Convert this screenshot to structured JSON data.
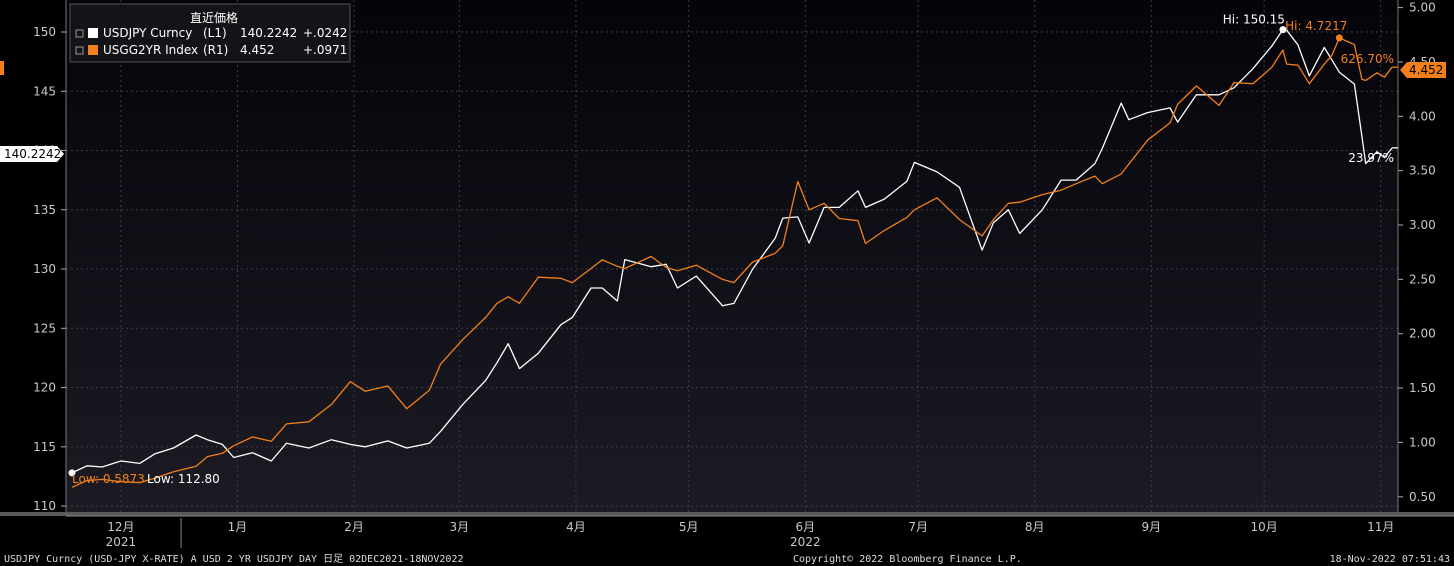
{
  "colors": {
    "usdjpy": "#ffffff",
    "usgg2yr": "#f27f1b",
    "background": "#0d0c14",
    "grid": "#3c3c46",
    "axis_text": "#c8c8c8"
  },
  "legend": {
    "title": "直近価格",
    "items": [
      {
        "name": "USDJPY Curncy",
        "axis": "(L1)",
        "last": "140.2242",
        "change": "+.0242"
      },
      {
        "name": "USGG2YR Index",
        "axis": "(R1)",
        "last": "4.452",
        "change": "+.0971"
      }
    ]
  },
  "annotations": {
    "left_last_value": "140.2242",
    "right_last_value": "4.452",
    "usdjpy_change_pct": "23.97%",
    "usgg2yr_change_pct": "626.70%",
    "usdjpy_high": "Hi: 150.15",
    "usgg2yr_high": "Hi: 4.7217",
    "usdjpy_low": "Low: 112.80",
    "usgg2yr_low": "Low: 0.5873"
  },
  "footer": {
    "left": "USDJPY Curncy (USD-JPY X-RATE) A USD 2 YR  USDJPY DAY  日足 02DEC2021-18NOV2022",
    "center": "Copyright© 2022 Bloomberg Finance L.P.",
    "right": "18-Nov-2022 07:51:43"
  },
  "chart_data": {
    "type": "line",
    "x_range": [
      "2021-12-02",
      "2022-11-18"
    ],
    "y_left": {
      "ticks": [
        110,
        115,
        120,
        125,
        130,
        135,
        140,
        145,
        150
      ],
      "range": [
        109.5,
        152.7
      ]
    },
    "y_right": {
      "ticks": [
        "0.50",
        "1.00",
        "1.50",
        "2.00",
        "2.50",
        "3.00",
        "3.50",
        "4.00",
        "4.50",
        "5.00"
      ],
      "range": [
        0.36,
        5.07
      ]
    },
    "x_ticks": [
      {
        "label": "12月",
        "date": "2021-12-15"
      },
      {
        "label": "1月",
        "date": "2022-01-15"
      },
      {
        "label": "2月",
        "date": "2022-02-15"
      },
      {
        "label": "3月",
        "date": "2022-03-15"
      },
      {
        "label": "4月",
        "date": "2022-04-15"
      },
      {
        "label": "5月",
        "date": "2022-05-15"
      },
      {
        "label": "6月",
        "date": "2022-06-15"
      },
      {
        "label": "7月",
        "date": "2022-07-15"
      },
      {
        "label": "8月",
        "date": "2022-08-15"
      },
      {
        "label": "9月",
        "date": "2022-09-15"
      },
      {
        "label": "10月",
        "date": "2022-10-15"
      },
      {
        "label": "11月",
        "date": "2022-11-15"
      }
    ],
    "year_labels": [
      {
        "label": "2021",
        "date": "2021-12-15"
      },
      {
        "label": "2022",
        "date": "2022-06-15"
      }
    ],
    "series": [
      {
        "name": "USDJPY Curncy",
        "axis": "left",
        "points": [
          [
            "2021-12-02",
            112.8
          ],
          [
            "2021-12-06",
            113.4
          ],
          [
            "2021-12-10",
            113.3
          ],
          [
            "2021-12-15",
            113.8
          ],
          [
            "2021-12-20",
            113.6
          ],
          [
            "2021-12-24",
            114.4
          ],
          [
            "2021-12-29",
            114.9
          ],
          [
            "2022-01-04",
            116.0
          ],
          [
            "2022-01-07",
            115.6
          ],
          [
            "2022-01-11",
            115.2
          ],
          [
            "2022-01-14",
            114.1
          ],
          [
            "2022-01-19",
            114.5
          ],
          [
            "2022-01-24",
            113.8
          ],
          [
            "2022-01-28",
            115.3
          ],
          [
            "2022-02-03",
            114.9
          ],
          [
            "2022-02-09",
            115.6
          ],
          [
            "2022-02-14",
            115.2
          ],
          [
            "2022-02-18",
            115.0
          ],
          [
            "2022-02-24",
            115.5
          ],
          [
            "2022-03-01",
            114.9
          ],
          [
            "2022-03-07",
            115.3
          ],
          [
            "2022-03-10",
            116.3
          ],
          [
            "2022-03-16",
            118.6
          ],
          [
            "2022-03-22",
            120.6
          ],
          [
            "2022-03-25",
            122.1
          ],
          [
            "2022-03-28",
            123.7
          ],
          [
            "2022-03-31",
            121.6
          ],
          [
            "2022-04-05",
            122.9
          ],
          [
            "2022-04-11",
            125.3
          ],
          [
            "2022-04-14",
            125.9
          ],
          [
            "2022-04-19",
            128.4
          ],
          [
            "2022-04-22",
            128.4
          ],
          [
            "2022-04-26",
            127.3
          ],
          [
            "2022-04-28",
            130.8
          ],
          [
            "2022-05-05",
            130.2
          ],
          [
            "2022-05-09",
            130.4
          ],
          [
            "2022-05-12",
            128.4
          ],
          [
            "2022-05-17",
            129.4
          ],
          [
            "2022-05-24",
            126.9
          ],
          [
            "2022-05-27",
            127.1
          ],
          [
            "2022-06-01",
            130.0
          ],
          [
            "2022-06-07",
            132.6
          ],
          [
            "2022-06-09",
            134.3
          ],
          [
            "2022-06-13",
            134.4
          ],
          [
            "2022-06-16",
            132.2
          ],
          [
            "2022-06-20",
            135.2
          ],
          [
            "2022-06-24",
            135.2
          ],
          [
            "2022-06-29",
            136.6
          ],
          [
            "2022-07-01",
            135.2
          ],
          [
            "2022-07-06",
            135.9
          ],
          [
            "2022-07-12",
            137.4
          ],
          [
            "2022-07-14",
            139.0
          ],
          [
            "2022-07-20",
            138.2
          ],
          [
            "2022-07-26",
            136.9
          ],
          [
            "2022-08-01",
            131.6
          ],
          [
            "2022-08-04",
            133.9
          ],
          [
            "2022-08-08",
            135.0
          ],
          [
            "2022-08-11",
            133.0
          ],
          [
            "2022-08-17",
            135.0
          ],
          [
            "2022-08-22",
            137.5
          ],
          [
            "2022-08-26",
            137.5
          ],
          [
            "2022-08-31",
            138.9
          ],
          [
            "2022-09-02",
            140.2
          ],
          [
            "2022-09-07",
            144.0
          ],
          [
            "2022-09-09",
            142.6
          ],
          [
            "2022-09-14",
            143.2
          ],
          [
            "2022-09-20",
            143.6
          ],
          [
            "2022-09-22",
            142.4
          ],
          [
            "2022-09-27",
            144.7
          ],
          [
            "2022-10-03",
            144.7
          ],
          [
            "2022-10-07",
            145.3
          ],
          [
            "2022-10-12",
            146.9
          ],
          [
            "2022-10-17",
            148.8
          ],
          [
            "2022-10-20",
            150.2
          ],
          [
            "2022-10-21",
            150.15
          ],
          [
            "2022-10-24",
            148.9
          ],
          [
            "2022-10-27",
            146.3
          ],
          [
            "2022-10-31",
            148.7
          ],
          [
            "2022-11-04",
            146.6
          ],
          [
            "2022-11-08",
            145.6
          ],
          [
            "2022-11-10",
            141.2
          ],
          [
            "2022-11-11",
            138.9
          ],
          [
            "2022-11-14",
            139.9
          ],
          [
            "2022-11-16",
            139.4
          ],
          [
            "2022-11-18",
            140.2242
          ]
        ]
      },
      {
        "name": "USGG2YR Index",
        "axis": "right",
        "points": [
          [
            "2021-12-02",
            0.5873
          ],
          [
            "2021-12-06",
            0.65
          ],
          [
            "2021-12-10",
            0.66
          ],
          [
            "2021-12-15",
            0.64
          ],
          [
            "2021-12-20",
            0.63
          ],
          [
            "2021-12-24",
            0.67
          ],
          [
            "2021-12-29",
            0.73
          ],
          [
            "2022-01-04",
            0.78
          ],
          [
            "2022-01-07",
            0.87
          ],
          [
            "2022-01-11",
            0.9
          ],
          [
            "2022-01-14",
            0.97
          ],
          [
            "2022-01-19",
            1.05
          ],
          [
            "2022-01-24",
            1.01
          ],
          [
            "2022-01-28",
            1.17
          ],
          [
            "2022-02-03",
            1.19
          ],
          [
            "2022-02-09",
            1.35
          ],
          [
            "2022-02-14",
            1.56
          ],
          [
            "2022-02-18",
            1.47
          ],
          [
            "2022-02-24",
            1.52
          ],
          [
            "2022-03-01",
            1.31
          ],
          [
            "2022-03-07",
            1.48
          ],
          [
            "2022-03-10",
            1.72
          ],
          [
            "2022-03-16",
            1.95
          ],
          [
            "2022-03-22",
            2.15
          ],
          [
            "2022-03-25",
            2.28
          ],
          [
            "2022-03-28",
            2.34
          ],
          [
            "2022-03-31",
            2.28
          ],
          [
            "2022-04-05",
            2.52
          ],
          [
            "2022-04-11",
            2.51
          ],
          [
            "2022-04-14",
            2.47
          ],
          [
            "2022-04-19",
            2.6
          ],
          [
            "2022-04-22",
            2.68
          ],
          [
            "2022-04-26",
            2.62
          ],
          [
            "2022-04-28",
            2.6
          ],
          [
            "2022-05-05",
            2.71
          ],
          [
            "2022-05-09",
            2.61
          ],
          [
            "2022-05-12",
            2.58
          ],
          [
            "2022-05-17",
            2.63
          ],
          [
            "2022-05-24",
            2.5
          ],
          [
            "2022-05-27",
            2.47
          ],
          [
            "2022-06-01",
            2.66
          ],
          [
            "2022-06-07",
            2.74
          ],
          [
            "2022-06-09",
            2.81
          ],
          [
            "2022-06-13",
            3.4
          ],
          [
            "2022-06-16",
            3.14
          ],
          [
            "2022-06-20",
            3.2
          ],
          [
            "2022-06-24",
            3.06
          ],
          [
            "2022-06-29",
            3.04
          ],
          [
            "2022-07-01",
            2.83
          ],
          [
            "2022-07-06",
            2.95
          ],
          [
            "2022-07-12",
            3.07
          ],
          [
            "2022-07-14",
            3.14
          ],
          [
            "2022-07-20",
            3.25
          ],
          [
            "2022-07-26",
            3.05
          ],
          [
            "2022-08-01",
            2.9
          ],
          [
            "2022-08-04",
            3.05
          ],
          [
            "2022-08-08",
            3.2
          ],
          [
            "2022-08-11",
            3.21
          ],
          [
            "2022-08-17",
            3.28
          ],
          [
            "2022-08-22",
            3.32
          ],
          [
            "2022-08-26",
            3.38
          ],
          [
            "2022-08-31",
            3.45
          ],
          [
            "2022-09-02",
            3.38
          ],
          [
            "2022-09-07",
            3.47
          ],
          [
            "2022-09-09",
            3.56
          ],
          [
            "2022-09-14",
            3.78
          ],
          [
            "2022-09-20",
            3.94
          ],
          [
            "2022-09-22",
            4.11
          ],
          [
            "2022-09-27",
            4.28
          ],
          [
            "2022-10-03",
            4.1
          ],
          [
            "2022-10-07",
            4.31
          ],
          [
            "2022-10-12",
            4.3
          ],
          [
            "2022-10-17",
            4.45
          ],
          [
            "2022-10-20",
            4.61
          ],
          [
            "2022-10-21",
            4.48
          ],
          [
            "2022-10-24",
            4.47
          ],
          [
            "2022-10-27",
            4.3
          ],
          [
            "2022-10-31",
            4.48
          ],
          [
            "2022-11-02",
            4.56
          ],
          [
            "2022-11-04",
            4.7217
          ],
          [
            "2022-11-08",
            4.66
          ],
          [
            "2022-11-10",
            4.34
          ],
          [
            "2022-11-11",
            4.33
          ],
          [
            "2022-11-14",
            4.4
          ],
          [
            "2022-11-16",
            4.36
          ],
          [
            "2022-11-18",
            4.452
          ]
        ]
      }
    ]
  }
}
